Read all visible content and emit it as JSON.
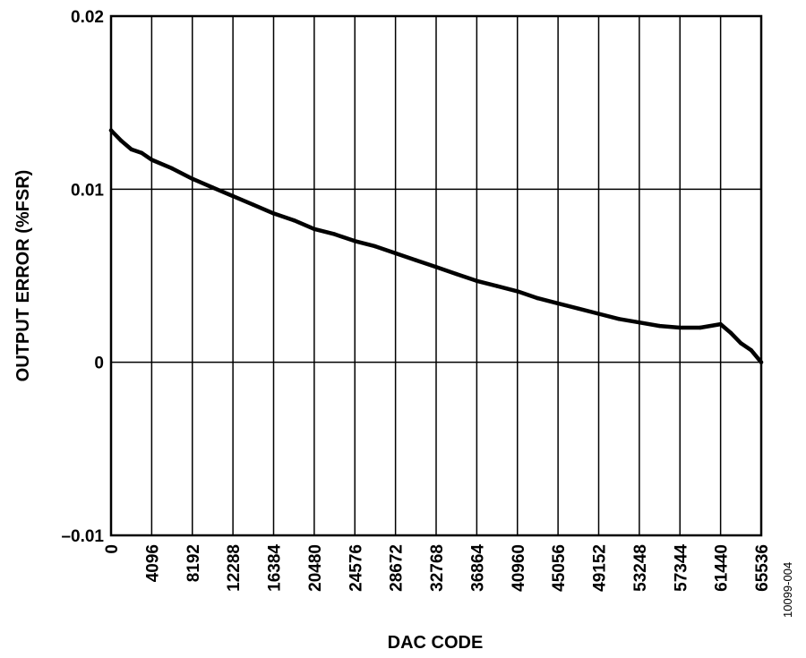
{
  "chart_data": {
    "type": "line",
    "title": "",
    "xlabel": "DAC CODE",
    "ylabel": "OUTPUT ERROR (%FSR)",
    "xlim": [
      0,
      65536
    ],
    "ylim": [
      -0.01,
      0.02
    ],
    "x_ticks": [
      0,
      4096,
      8192,
      12288,
      16384,
      20480,
      24576,
      28672,
      32768,
      36864,
      40960,
      45056,
      49152,
      53248,
      57344,
      61440,
      65536
    ],
    "x_tick_labels": [
      "0",
      "4096",
      "8192",
      "12288",
      "16384",
      "20480",
      "24576",
      "28672",
      "32768",
      "36864",
      "40960",
      "45056",
      "49152",
      "53248",
      "57344",
      "61440",
      "65536"
    ],
    "y_ticks": [
      -0.01,
      0,
      0.01,
      0.02
    ],
    "y_tick_labels": [
      "–0.01",
      "0",
      "0.01",
      "0.02"
    ],
    "grid": true,
    "series": [
      {
        "color": "#000000",
        "x": [
          0,
          1024,
          2048,
          3072,
          4096,
          6144,
          8192,
          10240,
          12288,
          14336,
          16384,
          18432,
          20480,
          22528,
          24576,
          26624,
          28672,
          30720,
          32768,
          34816,
          36864,
          38912,
          40960,
          43008,
          45056,
          47104,
          49152,
          51200,
          53248,
          55296,
          57344,
          59392,
          61440,
          62464,
          63488,
          64512,
          65536
        ],
        "y": [
          0.0134,
          0.0128,
          0.0123,
          0.0121,
          0.0117,
          0.0112,
          0.0106,
          0.0101,
          0.0096,
          0.0091,
          0.0086,
          0.0082,
          0.0077,
          0.0074,
          0.007,
          0.0067,
          0.0063,
          0.0059,
          0.0055,
          0.0051,
          0.0047,
          0.0044,
          0.0041,
          0.0037,
          0.0034,
          0.0031,
          0.0028,
          0.0025,
          0.0023,
          0.0021,
          0.002,
          0.002,
          0.0022,
          0.0017,
          0.0011,
          0.0007,
          0.0
        ]
      }
    ]
  },
  "figure_id": "10099-004"
}
